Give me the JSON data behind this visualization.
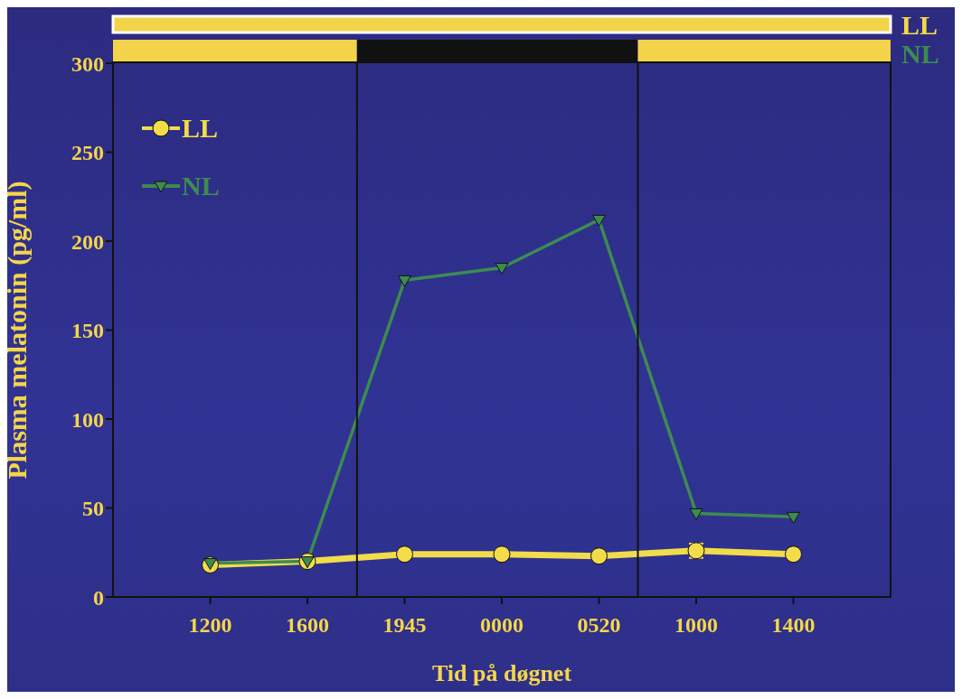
{
  "chart_data": {
    "type": "line",
    "xlabel": "Tid på døgnet",
    "ylabel": "Plasma melatonin (pg/ml)",
    "categories": [
      "1200",
      "1600",
      "1945",
      "0000",
      "0520",
      "1000",
      "1400"
    ],
    "ylim": [
      0,
      300
    ],
    "yticks": [
      0,
      50,
      100,
      150,
      200,
      250,
      300
    ],
    "grid": false,
    "legend": "top left",
    "line_style": "solid",
    "annotations": [
      "LL",
      "NL"
    ],
    "series": [
      {
        "name": "LL",
        "color": "#f2dc4a",
        "marker": "circle",
        "values": [
          18,
          20,
          24,
          24,
          23,
          26,
          24
        ],
        "errors": [
          null,
          null,
          null,
          null,
          null,
          4,
          null
        ]
      },
      {
        "name": "NL",
        "color": "#3c8c50",
        "marker": "triangle",
        "values": [
          19,
          20,
          178,
          185,
          212,
          47,
          45
        ]
      }
    ]
  }
}
